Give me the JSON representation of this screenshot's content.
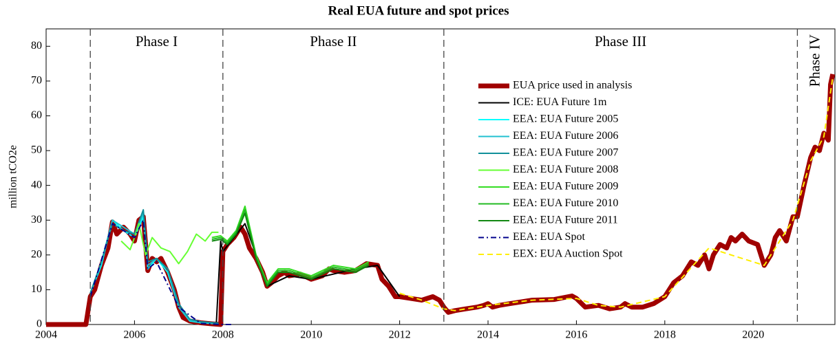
{
  "chart_data": {
    "type": "line",
    "title": "Real EUA future and spot prices",
    "y_label": "million tCO2e",
    "xlim": [
      2004,
      2021.85
    ],
    "xticks": [
      2004,
      2006,
      2008,
      2010,
      2012,
      2014,
      2016,
      2018,
      2020
    ],
    "ylim": [
      0,
      85
    ],
    "yticks": [
      0,
      10,
      20,
      30,
      40,
      50,
      60,
      70,
      80
    ],
    "grid": false,
    "legend": "upper center",
    "phase_boundaries": [
      2005,
      2008,
      2013,
      2021
    ],
    "phase_labels": [
      "Phase I",
      "Phase II",
      "Phase III",
      "Phase IV"
    ],
    "series": [
      {
        "name": "EUA price used in analysis",
        "color": "#a00000",
        "line_width": 7,
        "style": "solid",
        "x": [
          2004.0,
          2004.9,
          2005.0,
          2005.1,
          2005.25,
          2005.4,
          2005.5,
          2005.6,
          2005.75,
          2005.9,
          2006.0,
          2006.1,
          2006.2,
          2006.3,
          2006.4,
          2006.5,
          2006.6,
          2006.75,
          2006.9,
          2007.0,
          2007.1,
          2007.25,
          2007.5,
          2007.75,
          2007.95,
          2008.0,
          2008.1,
          2008.25,
          2008.4,
          2008.5,
          2008.6,
          2008.75,
          2008.9,
          2009.0,
          2009.1,
          2009.25,
          2009.4,
          2009.5,
          2009.75,
          2010.0,
          2010.25,
          2010.4,
          2010.5,
          2010.75,
          2011.0,
          2011.25,
          2011.5,
          2011.6,
          2011.75,
          2011.9,
          2012.0,
          2012.25,
          2012.5,
          2012.75,
          2012.9,
          2013.0,
          2013.1,
          2013.25,
          2013.5,
          2013.75,
          2013.9,
          2014.0,
          2014.1,
          2014.25,
          2014.5,
          2014.75,
          2015.0,
          2015.5,
          2015.9,
          2016.0,
          2016.2,
          2016.5,
          2016.75,
          2017.0,
          2017.1,
          2017.25,
          2017.5,
          2017.75,
          2018.0,
          2018.2,
          2018.4,
          2018.6,
          2018.75,
          2018.9,
          2019.0,
          2019.1,
          2019.25,
          2019.4,
          2019.5,
          2019.6,
          2019.75,
          2019.9,
          2020.1,
          2020.25,
          2020.4,
          2020.5,
          2020.6,
          2020.75,
          2020.9,
          2021.0,
          2021.15,
          2021.3,
          2021.4,
          2021.5,
          2021.6,
          2021.7,
          2021.75,
          2021.8
        ],
        "values": [
          0,
          0,
          8,
          10,
          17,
          22,
          29.5,
          26,
          28,
          26,
          24,
          30,
          31,
          15.5,
          19,
          18,
          19,
          15,
          10,
          5,
          2,
          1,
          0.5,
          0.2,
          0,
          21,
          23,
          25,
          28,
          26,
          22,
          19,
          15,
          11,
          12,
          14,
          15,
          14,
          14.5,
          13,
          14,
          16,
          15.5,
          15,
          15.5,
          17.5,
          17,
          13,
          11,
          8,
          8,
          7.5,
          7,
          8,
          7,
          5,
          3.5,
          4,
          4.5,
          5,
          5.5,
          6,
          5,
          5.5,
          6,
          6.5,
          7,
          7.2,
          8.2,
          7.5,
          5,
          5.5,
          4.5,
          5,
          6,
          5,
          5,
          6,
          8,
          12,
          14,
          18,
          17,
          20,
          16,
          20,
          23,
          22,
          25,
          24,
          26,
          24,
          23,
          17,
          20,
          25,
          27,
          24,
          31,
          31,
          40,
          48,
          51,
          50,
          55,
          53,
          69,
          72
        ]
      },
      {
        "name": "ICE: EUA Future 1m",
        "color": "#000000",
        "line_width": 2,
        "style": "solid",
        "x": [
          2007.85,
          2007.95,
          2008.0,
          2008.25,
          2008.5,
          2008.75,
          2009.0,
          2009.5,
          2010,
          2011,
          2011.5,
          2012
        ],
        "values": [
          0,
          24,
          21,
          25,
          29,
          20,
          11,
          14,
          13,
          16,
          17,
          8
        ]
      },
      {
        "name": "EEA: EUA Future 2005",
        "color": "#00ffff",
        "line_width": 2,
        "style": "solid",
        "x": [
          2005.0,
          2005.25,
          2005.5,
          2005.75,
          2006.0,
          2006.2,
          2006.3,
          2006.5,
          2006.75,
          2007.0,
          2007.25,
          2007.5,
          2007.9
        ],
        "values": [
          9,
          17,
          30,
          27,
          25,
          31,
          16,
          19,
          15,
          5,
          1,
          0.5,
          0.2
        ]
      },
      {
        "name": "EEA: EUA Future 2006",
        "color": "#20c0d0",
        "line_width": 2,
        "style": "solid",
        "x": [
          2005.0,
          2005.25,
          2005.5,
          2005.75,
          2006.0,
          2006.2,
          2006.3,
          2006.5,
          2006.75,
          2007.0,
          2007.25,
          2007.5,
          2007.9
        ],
        "values": [
          9,
          18,
          30,
          28,
          26,
          32,
          17,
          19,
          16,
          5,
          1.2,
          0.6,
          0.3
        ]
      },
      {
        "name": "EEA: EUA Future 2007",
        "color": "#10909a",
        "line_width": 2,
        "style": "solid",
        "x": [
          2005.0,
          2005.25,
          2005.5,
          2005.75,
          2006.0,
          2006.2,
          2006.3,
          2006.5,
          2006.75,
          2007.0,
          2007.25,
          2007.5,
          2007.9
        ],
        "values": [
          9,
          18,
          29,
          27,
          26,
          33,
          18,
          19,
          16,
          6,
          1.5,
          0.8,
          0.4
        ]
      },
      {
        "name": "EEA: EUA Future 2008",
        "color": "#66ff33",
        "line_width": 2,
        "style": "solid",
        "x": [
          2005.7,
          2005.9,
          2006.0,
          2006.1,
          2006.25,
          2006.4,
          2006.6,
          2006.8,
          2007.0,
          2007.2,
          2007.4,
          2007.6,
          2007.75,
          2007.9
        ],
        "values": [
          24,
          21.5,
          25,
          29,
          20,
          25,
          22,
          21,
          17.5,
          21,
          26,
          24,
          26.5,
          26.5
        ]
      },
      {
        "name": "EEA: EUA Future 2009",
        "color": "#33dd22",
        "line_width": 2,
        "style": "solid",
        "x": [
          2007.75,
          2007.95,
          2008.1,
          2008.3,
          2008.5,
          2008.75,
          2009.0,
          2009.25,
          2009.5,
          2010,
          2010.5,
          2011,
          2011.3
        ],
        "values": [
          25,
          25.5,
          24,
          27,
          34,
          20,
          12,
          16,
          16,
          14,
          17,
          16,
          18
        ]
      },
      {
        "name": "EEA: EUA Future 2010",
        "color": "#22bb22",
        "line_width": 2,
        "style": "solid",
        "x": [
          2007.75,
          2007.95,
          2008.1,
          2008.3,
          2008.5,
          2008.75,
          2009.0,
          2009.25,
          2009.5,
          2010,
          2010.5,
          2011,
          2011.3
        ],
        "values": [
          24.5,
          25,
          23.5,
          26.5,
          33,
          19.5,
          11.5,
          15.5,
          15.5,
          13.5,
          16.5,
          15.5,
          17.5
        ]
      },
      {
        "name": "EEA: EUA Future 2011",
        "color": "#118811",
        "line_width": 2,
        "style": "solid",
        "x": [
          2007.75,
          2007.95,
          2008.1,
          2008.3,
          2008.5,
          2008.75,
          2009.0,
          2009.25,
          2009.5,
          2010,
          2010.5,
          2011,
          2011.3
        ],
        "values": [
          24,
          24.5,
          23,
          26,
          32,
          19,
          11,
          15,
          15,
          13,
          16,
          15,
          17
        ]
      },
      {
        "name": "EEA: EUA Spot",
        "color": "#00008b",
        "line_width": 2,
        "style": "dash-dot",
        "x": [
          2005.0,
          2005.5,
          2006.0,
          2006.2,
          2006.3,
          2006.5,
          2007.0,
          2007.5,
          2007.95,
          2008.1,
          2008.2
        ],
        "values": [
          8,
          29,
          25,
          30,
          16,
          18,
          5,
          0.3,
          0,
          0,
          0
        ]
      },
      {
        "name": "EEX: EUA Auction Spot",
        "color": "#ffee00",
        "line_width": 2,
        "style": "dashed",
        "x": [
          2012.0,
          2012.5,
          2013.0,
          2013.25,
          2014,
          2015,
          2016,
          2016.5,
          2017,
          2018,
          2019,
          2020.25,
          2020.9,
          2021.3,
          2021.6,
          2021.8
        ],
        "values": [
          9,
          7,
          4.5,
          4,
          5.5,
          7,
          7.5,
          5.5,
          5,
          8,
          22,
          17,
          30,
          47,
          54,
          71
        ]
      }
    ]
  }
}
